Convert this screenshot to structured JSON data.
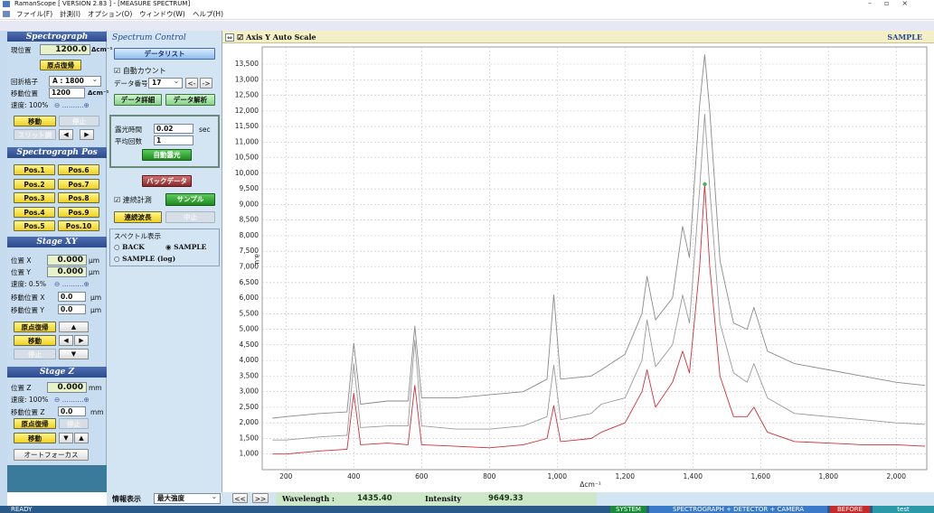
{
  "window": {
    "title": "RamanScope [ VERSION 2.83 ] - [MEASURE SPECTRUM]",
    "menu": [
      "ファイル(F)",
      "計測(I)",
      "オプション(O)",
      "ウィンドウ(W)",
      "ヘルプ(H)"
    ]
  },
  "spectrograph": {
    "title": "Spectrograph",
    "position_label": "現位置",
    "position": "1200.0",
    "unit": "Δcm⁻¹",
    "home": "原点復帰",
    "grating_label": "回折格子",
    "grating": "A : 1800",
    "target_label": "移動位置",
    "target": "1200",
    "target_unit": "Δcm⁻¹",
    "speed": "速度: 100%",
    "move": "移動",
    "stop": "停止",
    "slit": "スリット調"
  },
  "spectrograph_pos": {
    "title": "Spectrograph Pos",
    "buttons": [
      "Pos.1",
      "Pos.6",
      "Pos.2",
      "Pos.7",
      "Pos.3",
      "Pos.8",
      "Pos.4",
      "Pos.9",
      "Pos.5",
      "Pos.10"
    ]
  },
  "stage_xy": {
    "title": "Stage XY",
    "x_label": "位置 X",
    "x": "0.000",
    "x_unit": "μm",
    "y_label": "位置 Y",
    "y": "0.000",
    "y_unit": "μm",
    "speed": "速度: 0.5%",
    "tx_label": "移動位置 X",
    "tx": "0.0",
    "tx_unit": "μm",
    "ty_label": "移動位置 Y",
    "ty": "0.0",
    "ty_unit": "μm",
    "home": "原点復帰",
    "move": "移動",
    "stop": "停止"
  },
  "stage_z": {
    "title": "Stage Z",
    "z_label": "位置 Z",
    "z": "0.000",
    "z_unit": "mm",
    "speed": "速度: 100%",
    "tz_label": "移動位置 Z",
    "tz": "0.0",
    "tz_unit": "mm",
    "home": "原点復帰",
    "stop": "停止",
    "move": "移動",
    "autofocus": "オートフォーカス"
  },
  "spectrum_control": {
    "title": "Spectrum Control",
    "data_list": "データリスト",
    "auto_count": "自動カウント",
    "data_no_label": "データ番号",
    "data_no": "17",
    "prev": "<-",
    "next": "->",
    "detail": "データ詳細",
    "analysis": "データ解析",
    "exposure_label": "露光時間",
    "exposure": "0.02",
    "exposure_unit": "sec",
    "average_label": "平均回数",
    "average": "1",
    "auto_exposure": "自動露光",
    "back_data": "バックデータ",
    "continuous": "連続計測",
    "sample": "サンプル",
    "continuous_wl": "連続波長",
    "abort": "中止",
    "display_label": "スペクトル表示",
    "display_options": [
      "BACK",
      "SAMPLE",
      "SAMPLE (log)"
    ],
    "info_label": "情報表示",
    "info": "最大強度"
  },
  "chart_panel": {
    "autoscale": "Axis Y Auto Scale",
    "mode": "SAMPLE"
  },
  "status": {
    "prev": "<<",
    "next": ">>",
    "wavelength_label": "Wavelength :",
    "wavelength": "1435.40",
    "intensity_label": "Intensity",
    "intensity": "9649.33"
  },
  "status_bar": {
    "state": "READY",
    "system": "SYSTEM",
    "config": "SPECTROGRAPH + DETECTOR + CAMERA",
    "phase": "BEFORE",
    "user": "test"
  },
  "chart_data": {
    "type": "line",
    "x_label": "Δcm⁻¹",
    "y_label": "a.u.",
    "x": [
      160,
      200,
      300,
      380,
      400,
      420,
      500,
      560,
      580,
      600,
      700,
      800,
      900,
      970,
      990,
      1010,
      1100,
      1130,
      1200,
      1250,
      1265,
      1290,
      1340,
      1370,
      1390,
      1420,
      1435,
      1450,
      1480,
      1520,
      1560,
      1580,
      1620,
      1700,
      1800,
      1900,
      2000,
      2085
    ],
    "series": [
      {
        "color": "#8a8a8a",
        "values": [
          2150,
          2200,
          2300,
          2350,
          4550,
          2600,
          2700,
          2700,
          5100,
          2800,
          2800,
          2900,
          3000,
          3400,
          6100,
          3400,
          3500,
          3700,
          4200,
          5500,
          6700,
          5300,
          6000,
          8300,
          7300,
          12200,
          13800,
          12000,
          7200,
          5200,
          5000,
          5700,
          4300,
          3900,
          3700,
          3500,
          3300,
          3200
        ]
      },
      {
        "color": "#9a9a9a",
        "values": [
          1450,
          1450,
          1550,
          1600,
          3900,
          1850,
          1900,
          1900,
          4650,
          1900,
          1800,
          1800,
          1900,
          2200,
          3850,
          2100,
          2300,
          2600,
          2800,
          4000,
          5300,
          3800,
          4500,
          6100,
          5200,
          9500,
          11900,
          9500,
          5200,
          3600,
          3300,
          3900,
          2800,
          2300,
          2200,
          2100,
          2000,
          1950
        ]
      },
      {
        "color": "#d0303a",
        "values": [
          1000,
          1000,
          1100,
          1150,
          2950,
          1300,
          1350,
          1300,
          3200,
          1300,
          1250,
          1200,
          1300,
          1500,
          2550,
          1400,
          1500,
          1700,
          2000,
          3000,
          3700,
          2500,
          3300,
          4300,
          3600,
          7000,
          9650,
          7000,
          3500,
          2200,
          2200,
          2500,
          1700,
          1400,
          1350,
          1300,
          1300,
          1250
        ]
      }
    ],
    "marker_color": "#4caf50",
    "xlim": [
      130,
      2090
    ],
    "ylim": [
      500,
      14050
    ],
    "xticks": [
      200,
      400,
      600,
      800,
      {
        "value": 1000,
        "label": "1,000"
      },
      {
        "value": 1200,
        "label": "1,200"
      },
      {
        "value": 1400,
        "label": "1,400"
      },
      {
        "value": 1600,
        "label": "1,600"
      },
      {
        "value": 1800,
        "label": "1,800"
      },
      {
        "value": 2000,
        "label": "2,000"
      }
    ],
    "yticks": [
      {
        "value": 1000,
        "label": "1,000"
      },
      {
        "value": 1500,
        "label": "1,500"
      },
      {
        "value": 2000,
        "label": "2,000"
      },
      {
        "value": 2500,
        "label": "2,500"
      },
      {
        "value": 3000,
        "label": "3,000"
      },
      {
        "value": 3500,
        "label": "3,500"
      },
      {
        "value": 4000,
        "label": "4,000"
      },
      {
        "value": 4500,
        "label": "4,500"
      },
      {
        "value": 5000,
        "label": "5,000"
      },
      {
        "value": 5500,
        "label": "5,500"
      },
      {
        "value": 6000,
        "label": "6,000"
      },
      {
        "value": 6500,
        "label": "6,500"
      },
      {
        "value": 7000,
        "label": "7,000"
      },
      {
        "value": 7500,
        "label": "7,500"
      },
      {
        "value": 8000,
        "label": "8,000"
      },
      {
        "value": 8500,
        "label": "8,500"
      },
      {
        "value": 9000,
        "label": "9,000"
      },
      {
        "value": 9500,
        "label": "9,500"
      },
      {
        "value": 10000,
        "label": "10,000"
      },
      {
        "value": 10500,
        "label": "10,500"
      },
      {
        "value": 11000,
        "label": "11,000"
      },
      {
        "value": 11500,
        "label": "11,500"
      },
      {
        "value": 12000,
        "label": "12,000"
      },
      {
        "value": 12500,
        "label": "12,500"
      },
      {
        "value": 13000,
        "label": "13,000"
      },
      {
        "value": 13500,
        "label": "13,500"
      }
    ],
    "grid": true
  }
}
